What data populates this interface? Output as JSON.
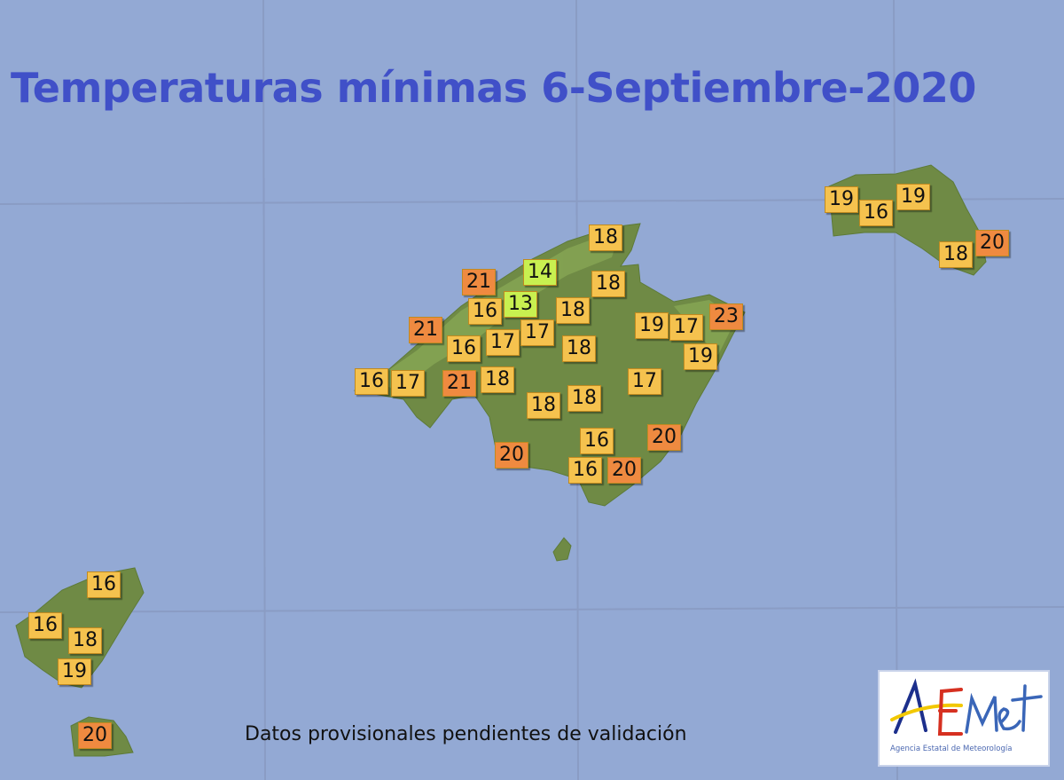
{
  "title": "Temperaturas mínimas 6-Septiembre-2020",
  "footnote": "Datos provisionales pendientes de validación",
  "logo": {
    "text": "AEMet",
    "subtitle": "Agencia Estatal de Meteorología"
  },
  "colors": {
    "sea": "#93a9d4",
    "land": "#6f8a45",
    "title": "#4050c8",
    "cool": "#c8f050",
    "mild": "#f5c24e",
    "warm": "#ef8a40"
  },
  "temperature_classes": {
    "cool": "<=14",
    "mild": "15-19",
    "warm": ">=20"
  },
  "stations": [
    {
      "island": "Mallorca",
      "value": 18
    },
    {
      "island": "Mallorca",
      "value": 14
    },
    {
      "island": "Mallorca",
      "value": 21
    },
    {
      "island": "Mallorca",
      "value": 18
    },
    {
      "island": "Mallorca",
      "value": 16
    },
    {
      "island": "Mallorca",
      "value": 13
    },
    {
      "island": "Mallorca",
      "value": 18
    },
    {
      "island": "Mallorca",
      "value": 21
    },
    {
      "island": "Mallorca",
      "value": 16
    },
    {
      "island": "Mallorca",
      "value": 17
    },
    {
      "island": "Mallorca",
      "value": 17
    },
    {
      "island": "Mallorca",
      "value": 18
    },
    {
      "island": "Mallorca",
      "value": 19
    },
    {
      "island": "Mallorca",
      "value": 17
    },
    {
      "island": "Mallorca",
      "value": 23
    },
    {
      "island": "Mallorca",
      "value": 19
    },
    {
      "island": "Mallorca",
      "value": 16
    },
    {
      "island": "Mallorca",
      "value": 17
    },
    {
      "island": "Mallorca",
      "value": 21
    },
    {
      "island": "Mallorca",
      "value": 18
    },
    {
      "island": "Mallorca",
      "value": 17
    },
    {
      "island": "Mallorca",
      "value": 18
    },
    {
      "island": "Mallorca",
      "value": 18
    },
    {
      "island": "Mallorca",
      "value": 20
    },
    {
      "island": "Mallorca",
      "value": 16
    },
    {
      "island": "Mallorca",
      "value": 20
    },
    {
      "island": "Mallorca",
      "value": 16
    },
    {
      "island": "Mallorca",
      "value": 20
    },
    {
      "island": "Menorca",
      "value": 19
    },
    {
      "island": "Menorca",
      "value": 16
    },
    {
      "island": "Menorca",
      "value": 19
    },
    {
      "island": "Menorca",
      "value": 20
    },
    {
      "island": "Menorca",
      "value": 18
    },
    {
      "island": "Ibiza",
      "value": 16
    },
    {
      "island": "Ibiza",
      "value": 16
    },
    {
      "island": "Ibiza",
      "value": 18
    },
    {
      "island": "Ibiza",
      "value": 19
    },
    {
      "island": "Formentera",
      "value": 20
    }
  ]
}
